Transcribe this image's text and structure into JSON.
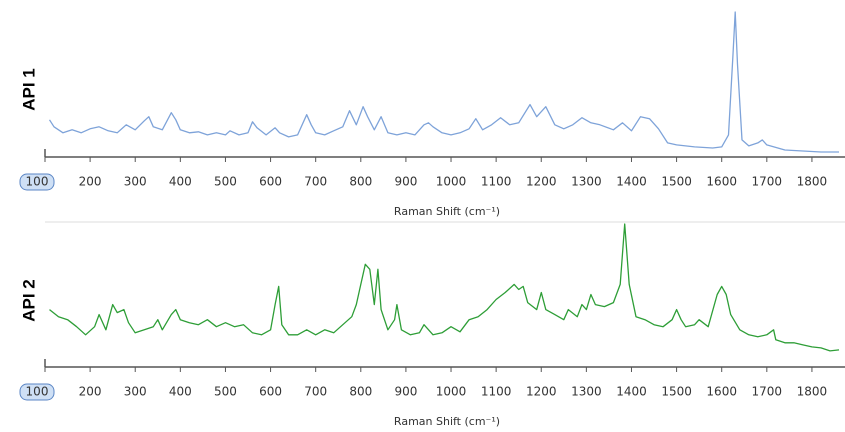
{
  "chart_data": [
    {
      "type": "line",
      "title": "API 1",
      "xlabel": "Raman Shift (cm⁻¹)",
      "color": "#7ea3d9",
      "xlim": [
        100,
        1860
      ],
      "xticks": [
        100,
        200,
        300,
        400,
        500,
        600,
        700,
        800,
        900,
        1000,
        1100,
        1200,
        1300,
        1400,
        1500,
        1600,
        1700,
        1800
      ],
      "x": [
        110,
        120,
        140,
        160,
        180,
        200,
        220,
        240,
        260,
        280,
        300,
        320,
        330,
        340,
        360,
        380,
        390,
        400,
        420,
        440,
        460,
        480,
        500,
        510,
        530,
        550,
        560,
        570,
        590,
        610,
        620,
        640,
        660,
        680,
        690,
        700,
        720,
        740,
        760,
        775,
        790,
        805,
        815,
        830,
        845,
        860,
        880,
        900,
        920,
        940,
        950,
        960,
        980,
        1000,
        1020,
        1040,
        1055,
        1070,
        1090,
        1110,
        1130,
        1150,
        1175,
        1190,
        1210,
        1230,
        1250,
        1270,
        1290,
        1310,
        1330,
        1360,
        1380,
        1400,
        1420,
        1440,
        1460,
        1480,
        1500,
        1520,
        1540,
        1580,
        1600,
        1615,
        1625,
        1630,
        1635,
        1645,
        1660,
        1680,
        1690,
        1700,
        1740,
        1780,
        1820,
        1860
      ],
      "values": [
        35,
        28,
        22,
        25,
        22,
        26,
        28,
        24,
        22,
        30,
        25,
        34,
        38,
        28,
        25,
        42,
        35,
        25,
        22,
        23,
        20,
        22,
        20,
        24,
        20,
        22,
        33,
        27,
        20,
        27,
        22,
        18,
        20,
        40,
        30,
        22,
        20,
        24,
        28,
        44,
        30,
        48,
        38,
        25,
        38,
        22,
        20,
        22,
        20,
        30,
        32,
        28,
        22,
        20,
        22,
        26,
        36,
        25,
        30,
        37,
        30,
        32,
        50,
        38,
        48,
        30,
        26,
        30,
        37,
        32,
        30,
        25,
        32,
        24,
        38,
        36,
        26,
        12,
        10,
        9,
        8,
        7,
        8,
        20,
        100,
        142,
        90,
        15,
        9,
        12,
        15,
        10,
        5,
        4,
        3,
        3
      ]
    },
    {
      "type": "line",
      "title": "API 2",
      "xlabel": "Raman Shift (cm⁻¹)",
      "color": "#2e9e37",
      "xlim": [
        100,
        1860
      ],
      "xticks": [
        100,
        200,
        300,
        400,
        500,
        600,
        700,
        800,
        900,
        1000,
        1100,
        1200,
        1300,
        1400,
        1500,
        1600,
        1700,
        1800
      ],
      "x": [
        110,
        130,
        150,
        170,
        190,
        210,
        220,
        235,
        250,
        260,
        275,
        285,
        300,
        320,
        340,
        350,
        360,
        380,
        390,
        400,
        420,
        440,
        460,
        480,
        500,
        520,
        540,
        560,
        580,
        600,
        610,
        618,
        625,
        640,
        660,
        680,
        700,
        720,
        740,
        760,
        780,
        790,
        800,
        810,
        820,
        830,
        838,
        845,
        860,
        875,
        880,
        890,
        910,
        930,
        940,
        960,
        980,
        1000,
        1020,
        1040,
        1060,
        1080,
        1100,
        1120,
        1140,
        1150,
        1160,
        1170,
        1190,
        1200,
        1210,
        1230,
        1250,
        1260,
        1280,
        1290,
        1300,
        1310,
        1320,
        1340,
        1360,
        1375,
        1385,
        1395,
        1410,
        1430,
        1450,
        1470,
        1490,
        1500,
        1510,
        1520,
        1540,
        1550,
        1570,
        1590,
        1600,
        1610,
        1620,
        1640,
        1660,
        1680,
        1700,
        1715,
        1720,
        1740,
        1760,
        1780,
        1800,
        1820,
        1840,
        1860
      ],
      "values": [
        55,
        48,
        45,
        38,
        30,
        38,
        50,
        35,
        60,
        52,
        55,
        42,
        32,
        35,
        38,
        45,
        35,
        50,
        55,
        45,
        42,
        40,
        45,
        38,
        42,
        38,
        40,
        32,
        30,
        35,
        60,
        78,
        40,
        30,
        30,
        35,
        30,
        35,
        32,
        40,
        48,
        60,
        80,
        100,
        95,
        60,
        95,
        55,
        35,
        45,
        60,
        35,
        30,
        32,
        40,
        30,
        32,
        38,
        33,
        45,
        48,
        55,
        65,
        72,
        80,
        75,
        78,
        62,
        55,
        72,
        55,
        50,
        45,
        55,
        48,
        60,
        55,
        70,
        60,
        58,
        62,
        80,
        140,
        80,
        48,
        45,
        40,
        38,
        45,
        55,
        45,
        38,
        40,
        45,
        38,
        70,
        78,
        70,
        50,
        35,
        30,
        28,
        30,
        35,
        25,
        22,
        22,
        20,
        18,
        17,
        14,
        15
      ]
    }
  ]
}
